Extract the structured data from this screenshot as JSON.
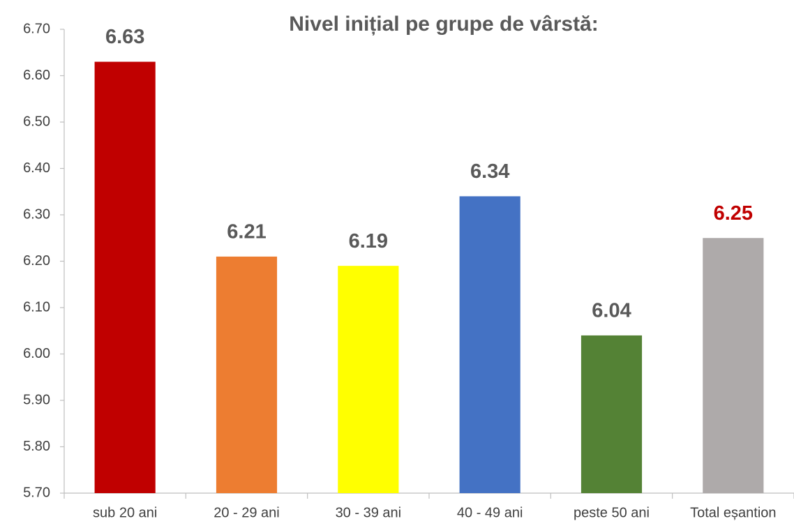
{
  "chart_data": {
    "type": "bar",
    "title": "Nivel inițial pe grupe de vârstă:",
    "categories": [
      "sub 20 ani",
      "20 - 29 ani",
      "30 - 39 ani",
      "40 - 49 ani",
      "peste 50 ani",
      "Total eșantion"
    ],
    "values": [
      6.63,
      6.21,
      6.19,
      6.34,
      6.04,
      6.25
    ],
    "colors": [
      "#c00000",
      "#ed7d31",
      "#ffff00",
      "#4472c4",
      "#548235",
      "#aeaaaa"
    ],
    "value_label_colors": [
      "#595959",
      "#595959",
      "#595959",
      "#595959",
      "#595959",
      "#c00000"
    ],
    "ylim": [
      5.7,
      6.7
    ],
    "yticks": [
      {
        "value": 5.7,
        "label": "5.70"
      },
      {
        "value": 5.8,
        "label": "5.80"
      },
      {
        "value": 5.9,
        "label": "5.90"
      },
      {
        "value": 6.0,
        "label": "6.00"
      },
      {
        "value": 6.1,
        "label": "6.10"
      },
      {
        "value": 6.2,
        "label": "6.20"
      },
      {
        "value": 6.3,
        "label": "6.30"
      },
      {
        "value": 6.4,
        "label": "6.40"
      },
      {
        "value": 6.5,
        "label": "6.50"
      },
      {
        "value": 6.6,
        "label": "6.60"
      },
      {
        "value": 6.7,
        "label": "6.70"
      }
    ],
    "grid": false
  }
}
